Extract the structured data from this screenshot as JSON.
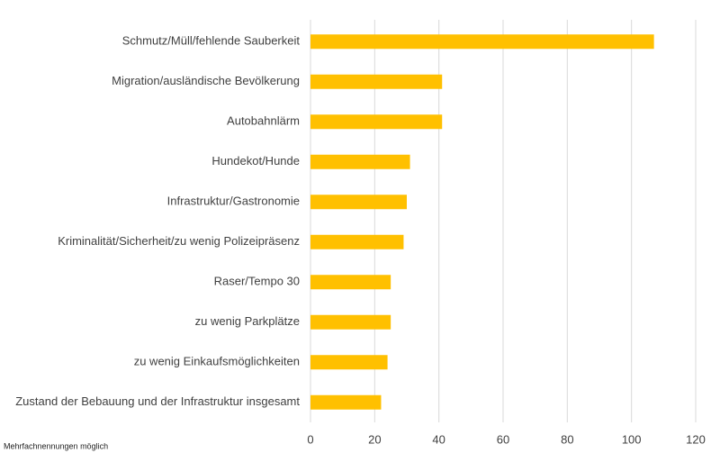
{
  "chart_data": {
    "type": "barh",
    "categories": [
      "Schmutz/Müll/fehlende Sauberkeit",
      "Migration/ausländische Bevölkerung",
      "Autobahnlärm",
      "Hundekot/Hunde",
      "Infrastruktur/Gastronomie",
      "Kriminalität/Sicherheit/zu wenig Polizeipräsenz",
      "Raser/Tempo 30",
      "zu wenig Parkplätze",
      "zu wenig Einkaufsmöglichkeiten",
      "Zustand der Bebauung und der Infrastruktur insgesamt"
    ],
    "values": [
      107,
      41,
      41,
      31,
      30,
      29,
      25,
      25,
      24,
      22
    ],
    "color": "#ffc000",
    "xlim": [
      0,
      120
    ],
    "xticks": [
      0,
      20,
      40,
      60,
      80,
      100,
      120
    ],
    "grid": true,
    "note": "Mehrfachnennungen möglich"
  }
}
